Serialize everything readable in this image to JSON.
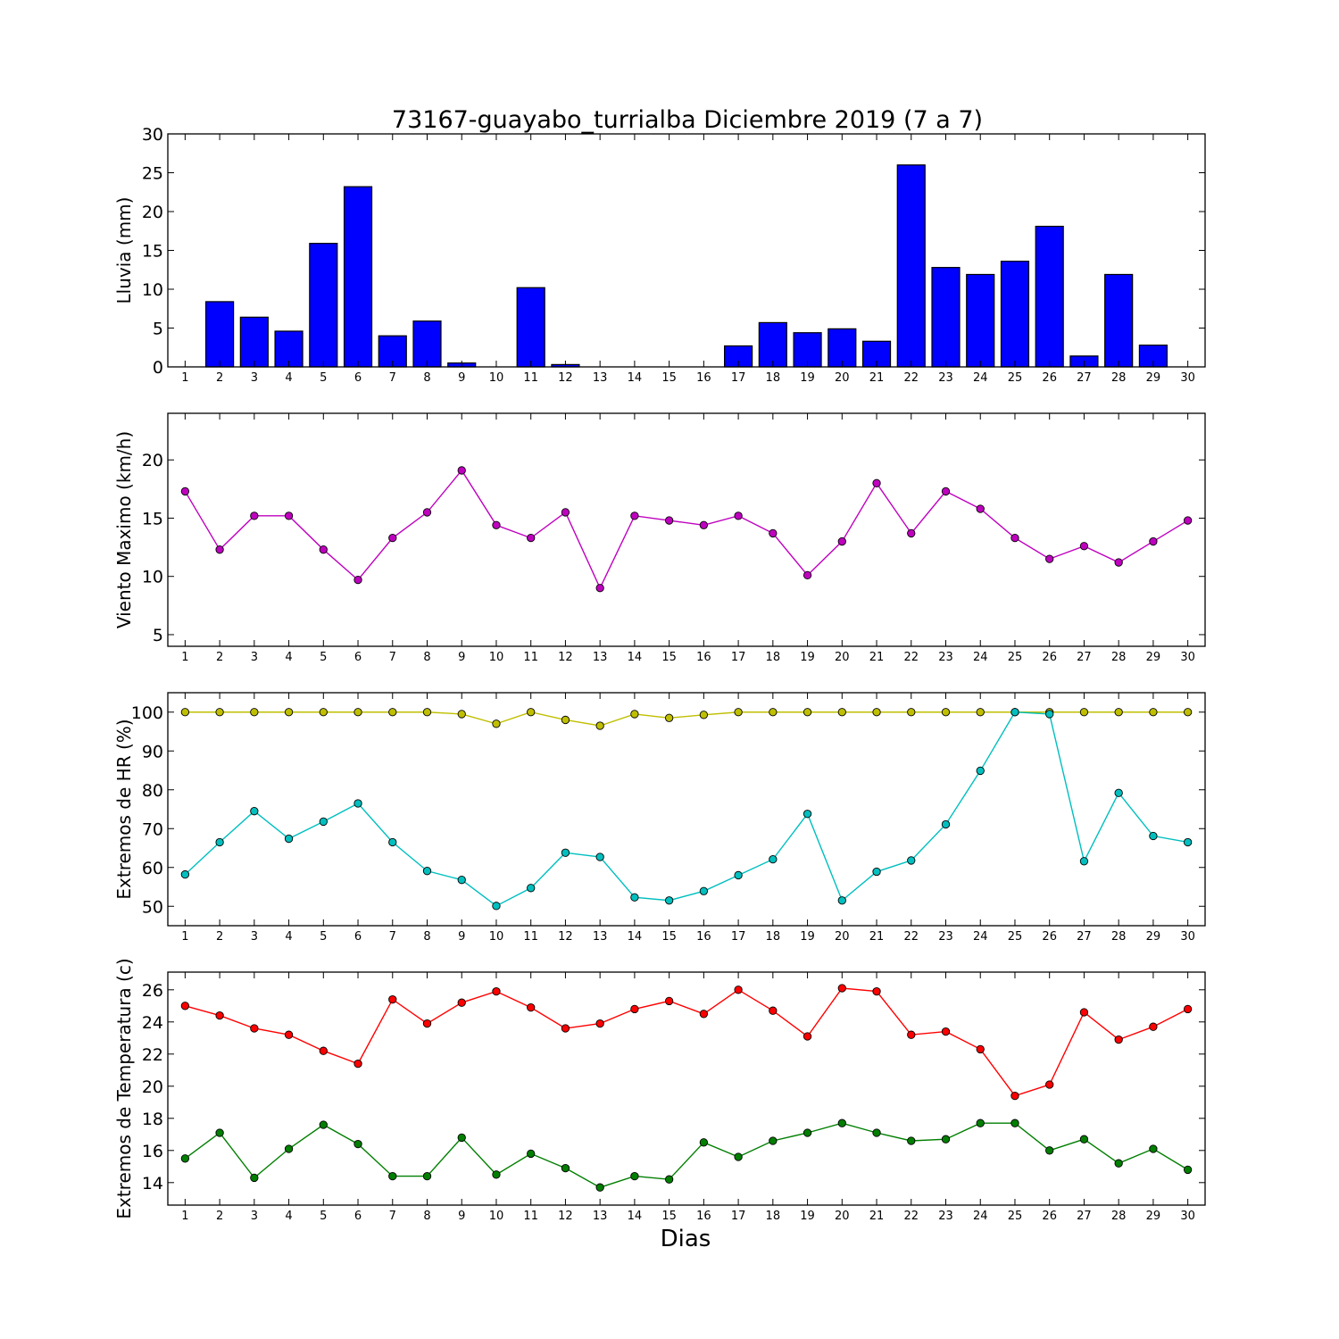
{
  "chart_data": {
    "title": "73167-guayabo_turrialba Diciembre 2019  (7 a 7)",
    "xlabel": "Dias",
    "days": [
      1,
      2,
      3,
      4,
      5,
      6,
      7,
      8,
      9,
      10,
      11,
      12,
      13,
      14,
      15,
      16,
      17,
      18,
      19,
      20,
      21,
      22,
      23,
      24,
      25,
      26,
      27,
      28,
      29,
      30
    ],
    "panels": [
      {
        "type": "bar",
        "ylabel": "Lluvia (mm)",
        "ylim": [
          0,
          30
        ],
        "yticks": [
          0,
          5,
          10,
          15,
          20,
          25,
          30
        ],
        "series": [
          {
            "color": "#0000ff",
            "values": [
              0,
              8.4,
              6.4,
              4.6,
              15.9,
              23.2,
              4.0,
              5.9,
              0.5,
              0,
              10.2,
              0.3,
              0,
              0,
              0,
              0,
              2.7,
              5.7,
              4.4,
              4.9,
              3.3,
              26.0,
              12.8,
              11.9,
              13.6,
              18.1,
              1.4,
              11.9,
              2.8,
              0
            ]
          }
        ]
      },
      {
        "type": "line",
        "ylabel": "Viento Maximo (km/h)",
        "ylim": [
          4,
          24
        ],
        "yticks": [
          5,
          10,
          15,
          20
        ],
        "series": [
          {
            "color": "#bf00bf",
            "values": [
              17.3,
              12.3,
              15.2,
              15.2,
              12.3,
              9.7,
              13.3,
              15.5,
              19.1,
              14.4,
              13.3,
              15.5,
              9.0,
              15.2,
              14.8,
              14.4,
              15.2,
              13.7,
              10.1,
              13.0,
              18.0,
              13.7,
              17.3,
              15.8,
              13.3,
              11.5,
              12.6,
              11.2,
              13.0,
              14.8
            ]
          }
        ]
      },
      {
        "type": "line",
        "ylabel": "Extremos de HR (%)",
        "ylim": [
          45,
          105
        ],
        "yticks": [
          50,
          60,
          70,
          80,
          90,
          100
        ],
        "series": [
          {
            "color": "#bfbf00",
            "values": [
              100,
              100,
              100,
              100,
              100,
              100,
              100,
              100,
              99.5,
              97,
              100,
              98,
              96.5,
              99.5,
              98.5,
              99.3,
              100,
              100,
              100,
              100,
              100,
              100,
              100,
              100,
              100,
              100,
              100,
              100,
              100,
              100
            ]
          },
          {
            "color": "#00bfbf",
            "values": [
              58.2,
              66.5,
              74.5,
              67.4,
              71.8,
              76.5,
              66.5,
              59.1,
              56.8,
              50.1,
              54.7,
              63.8,
              62.7,
              52.3,
              51.5,
              53.9,
              58.0,
              62.1,
              73.8,
              51.5,
              58.9,
              61.8,
              71.1,
              84.9,
              100,
              99.5,
              61.6,
              79.2,
              68.1,
              66.5
            ]
          }
        ]
      },
      {
        "type": "line",
        "ylabel": "Extremos de Temperatura (c)",
        "ylim": [
          12.6,
          27.1
        ],
        "yticks": [
          14,
          16,
          18,
          20,
          22,
          24,
          26
        ],
        "series": [
          {
            "color": "#ff0000",
            "values": [
              25.0,
              24.4,
              23.6,
              23.2,
              22.2,
              21.4,
              25.4,
              23.9,
              25.2,
              25.9,
              24.9,
              23.6,
              23.9,
              24.8,
              25.3,
              24.5,
              26.0,
              24.7,
              23.1,
              26.1,
              25.9,
              23.2,
              23.4,
              22.3,
              19.4,
              20.1,
              24.6,
              22.9,
              23.7,
              24.8
            ]
          },
          {
            "color": "#007f00",
            "values": [
              15.5,
              17.1,
              14.3,
              16.1,
              17.6,
              16.4,
              14.4,
              14.4,
              16.8,
              14.5,
              15.8,
              14.9,
              13.7,
              14.4,
              14.2,
              16.5,
              15.6,
              16.6,
              17.1,
              17.7,
              17.1,
              16.6,
              16.7,
              17.7,
              17.7,
              16.0,
              16.7,
              15.2,
              16.1,
              14.8
            ]
          }
        ]
      }
    ]
  }
}
